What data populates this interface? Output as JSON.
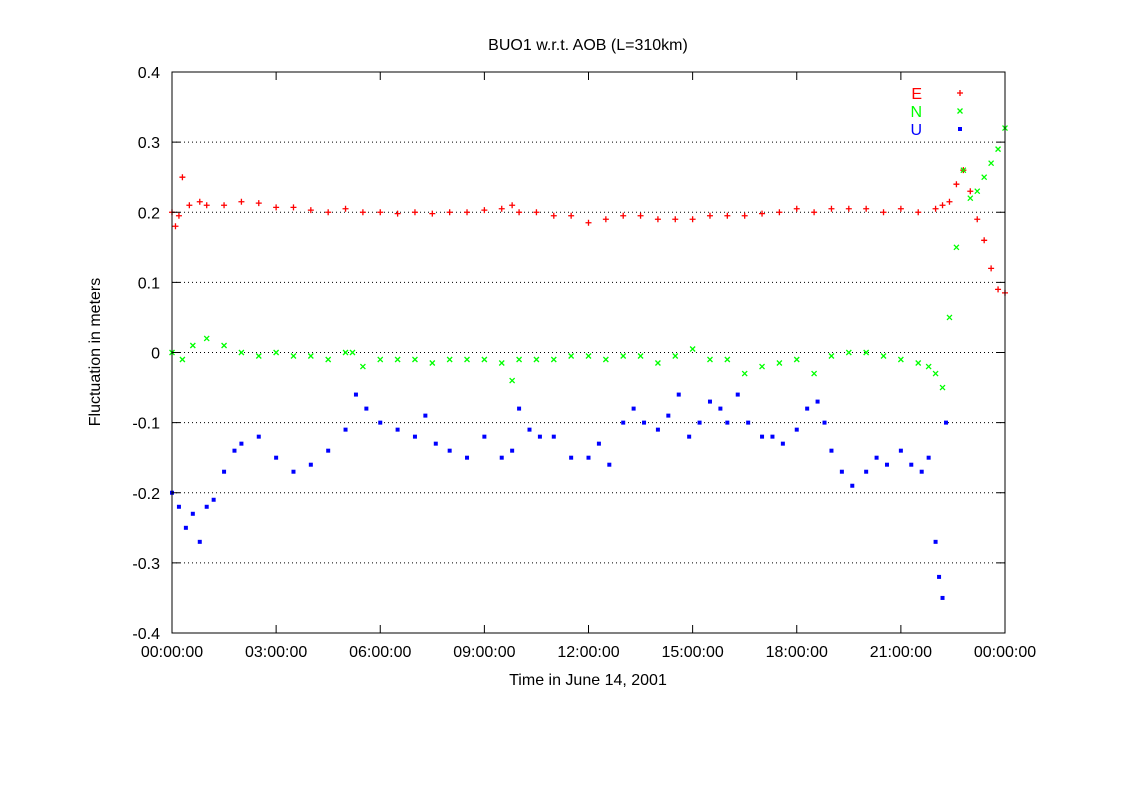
{
  "chart_data": {
    "type": "scatter",
    "title": "BUO1 w.r.t. AOB (L=310km)",
    "xlabel": "Time in June 14, 2001",
    "ylabel": "Fluctuation in meters",
    "x_unit": "hours",
    "xlim": [
      0,
      24
    ],
    "ylim": [
      -0.4,
      0.4
    ],
    "x_ticks": [
      0,
      3,
      6,
      9,
      12,
      15,
      18,
      21,
      24
    ],
    "x_tick_labels": [
      "00:00:00",
      "03:00:00",
      "06:00:00",
      "09:00:00",
      "12:00:00",
      "15:00:00",
      "18:00:00",
      "21:00:00",
      "00:00:00"
    ],
    "y_ticks": [
      -0.4,
      -0.3,
      -0.2,
      -0.1,
      0,
      0.1,
      0.2,
      0.3,
      0.4
    ],
    "y_tick_labels": [
      "-0.4",
      "-0.3",
      "-0.2",
      "-0.1",
      "0",
      "0.1",
      "0.2",
      "0.3",
      "0.4"
    ],
    "grid": "horizontal-dotted",
    "legend_position": "top-right",
    "series": [
      {
        "name": "E",
        "color": "#ff0000",
        "marker": "plus",
        "x": [
          0,
          0.1,
          0.2,
          0.3,
          0.5,
          0.8,
          1,
          1.5,
          2,
          2.5,
          3,
          3.5,
          4,
          4.5,
          5,
          5.5,
          6,
          6.5,
          7,
          7.5,
          8,
          8.5,
          9,
          9.5,
          9.8,
          10,
          10.5,
          11,
          11.5,
          12,
          12.5,
          13,
          13.5,
          14,
          14.5,
          15,
          15.5,
          16,
          16.5,
          17,
          17.5,
          18,
          18.5,
          19,
          19.5,
          20,
          20.5,
          21,
          21.5,
          22,
          22.2,
          22.4,
          22.6,
          22.8,
          23,
          23.2,
          23.4,
          23.6,
          23.8,
          24
        ],
        "y": [
          0.2,
          0.18,
          0.195,
          0.25,
          0.21,
          0.215,
          0.21,
          0.21,
          0.215,
          0.213,
          0.207,
          0.207,
          0.203,
          0.2,
          0.205,
          0.2,
          0.2,
          0.198,
          0.2,
          0.198,
          0.2,
          0.2,
          0.203,
          0.205,
          0.21,
          0.2,
          0.2,
          0.195,
          0.195,
          0.185,
          0.19,
          0.195,
          0.195,
          0.19,
          0.19,
          0.19,
          0.195,
          0.195,
          0.195,
          0.198,
          0.2,
          0.205,
          0.2,
          0.205,
          0.205,
          0.205,
          0.2,
          0.205,
          0.2,
          0.205,
          0.21,
          0.215,
          0.24,
          0.26,
          0.23,
          0.19,
          0.16,
          0.12,
          0.09,
          0.085
        ]
      },
      {
        "name": "N",
        "color": "#00ff00",
        "marker": "cross",
        "x": [
          0,
          0.3,
          0.6,
          1,
          1.5,
          2,
          2.5,
          3,
          3.5,
          4,
          4.5,
          5,
          5.2,
          5.5,
          6,
          6.5,
          7,
          7.5,
          8,
          8.5,
          9,
          9.5,
          9.8,
          10,
          10.5,
          11,
          11.5,
          12,
          12.5,
          13,
          13.5,
          14,
          14.5,
          15,
          15.5,
          16,
          16.5,
          17,
          17.5,
          18,
          18.5,
          19,
          19.5,
          20,
          20.5,
          21,
          21.5,
          21.8,
          22,
          22.2,
          22.4,
          22.6,
          22.8,
          23,
          23.2,
          23.4,
          23.6,
          23.8,
          24
        ],
        "y": [
          0,
          -0.01,
          0.01,
          0.02,
          0.01,
          0,
          -0.005,
          0,
          -0.005,
          -0.005,
          -0.01,
          0,
          0,
          -0.02,
          -0.01,
          -0.01,
          -0.01,
          -0.015,
          -0.01,
          -0.01,
          -0.01,
          -0.015,
          -0.04,
          -0.01,
          -0.01,
          -0.01,
          -0.005,
          -0.005,
          -0.01,
          -0.005,
          -0.005,
          -0.015,
          -0.005,
          0.005,
          -0.01,
          -0.01,
          -0.03,
          -0.02,
          -0.015,
          -0.01,
          -0.03,
          -0.005,
          0,
          0,
          -0.005,
          -0.01,
          -0.015,
          -0.02,
          -0.03,
          -0.05,
          0.05,
          0.15,
          0.26,
          0.22,
          0.23,
          0.25,
          0.27,
          0.29,
          0.32
        ]
      },
      {
        "name": "U",
        "color": "#0000ff",
        "marker": "square",
        "x": [
          0,
          0.2,
          0.4,
          0.6,
          0.8,
          1,
          1.2,
          1.5,
          1.8,
          2,
          2.5,
          3,
          3.5,
          4,
          4.5,
          5,
          5.3,
          5.6,
          6,
          6.5,
          7,
          7.3,
          7.6,
          8,
          8.5,
          9,
          9.5,
          9.8,
          10,
          10.3,
          10.6,
          11,
          11.5,
          12,
          12.3,
          12.6,
          13,
          13.3,
          13.6,
          14,
          14.3,
          14.6,
          14.9,
          15.2,
          15.5,
          15.8,
          16,
          16.3,
          16.6,
          17,
          17.3,
          17.6,
          18,
          18.3,
          18.6,
          18.8,
          19,
          19.3,
          19.6,
          20,
          20.3,
          20.6,
          21,
          21.3,
          21.6,
          21.8,
          22,
          22.1,
          22.2,
          22.3
        ],
        "y": [
          -0.2,
          -0.22,
          -0.25,
          -0.23,
          -0.27,
          -0.22,
          -0.21,
          -0.17,
          -0.14,
          -0.13,
          -0.12,
          -0.15,
          -0.17,
          -0.16,
          -0.14,
          -0.11,
          -0.06,
          -0.08,
          -0.1,
          -0.11,
          -0.12,
          -0.09,
          -0.13,
          -0.14,
          -0.15,
          -0.12,
          -0.15,
          -0.14,
          -0.08,
          -0.11,
          -0.12,
          -0.12,
          -0.15,
          -0.15,
          -0.13,
          -0.16,
          -0.1,
          -0.08,
          -0.1,
          -0.11,
          -0.09,
          -0.06,
          -0.12,
          -0.1,
          -0.07,
          -0.08,
          -0.1,
          -0.06,
          -0.1,
          -0.12,
          -0.12,
          -0.13,
          -0.11,
          -0.08,
          -0.07,
          -0.1,
          -0.14,
          -0.17,
          -0.19,
          -0.17,
          -0.15,
          -0.16,
          -0.14,
          -0.16,
          -0.17,
          -0.15,
          -0.27,
          -0.32,
          -0.35,
          -0.1
        ]
      }
    ]
  }
}
